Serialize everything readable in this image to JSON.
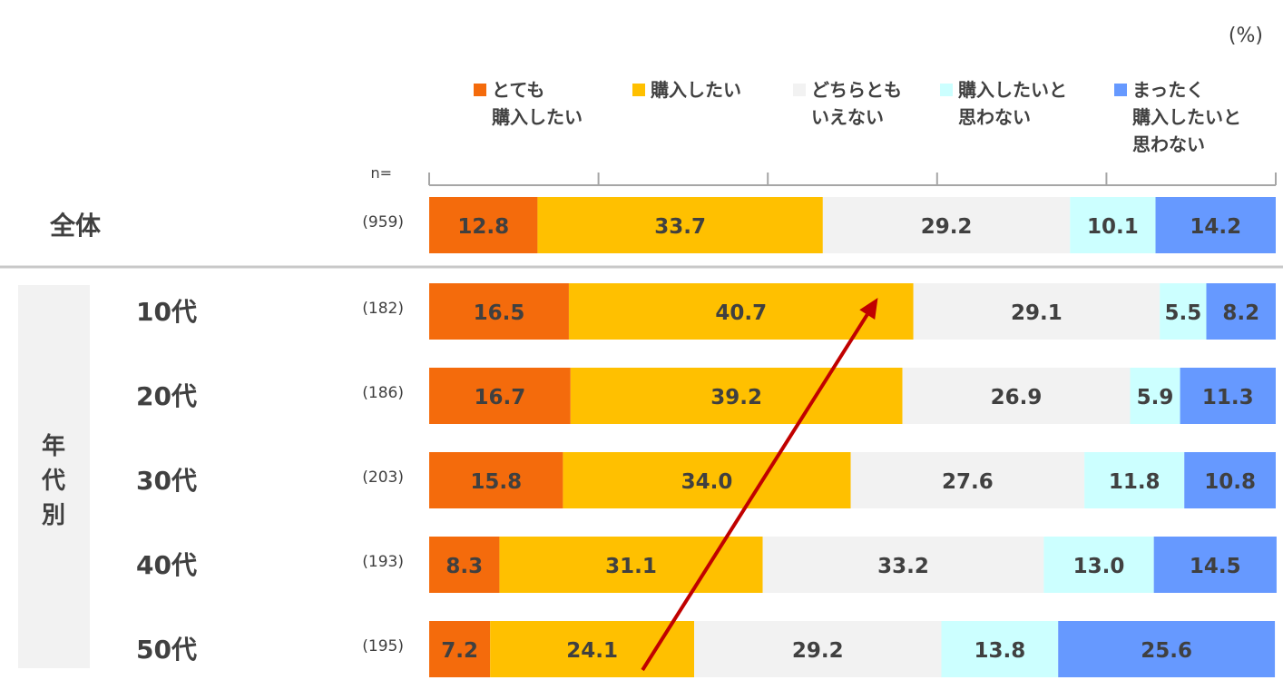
{
  "chart_data": {
    "type": "bar",
    "orientation": "horizontal",
    "stacked": true,
    "unit": "(%)",
    "n_label": "n=",
    "legend_position": "top",
    "grid": false,
    "xlim": [
      0,
      100
    ],
    "series": [
      {
        "name": "とても\n購入したい",
        "color": "#F46B0C",
        "values": [
          12.8,
          16.5,
          16.7,
          15.8,
          8.3,
          7.2
        ]
      },
      {
        "name": "購入したい",
        "color": "#FFC000",
        "values": [
          33.7,
          40.7,
          39.2,
          34.0,
          31.1,
          24.1
        ]
      },
      {
        "name": "どちらとも\nいえない",
        "color": "#F2F2F2",
        "values": [
          29.2,
          29.1,
          26.9,
          27.6,
          33.2,
          29.2
        ]
      },
      {
        "name": "購入したいと\n思わない",
        "color": "#CCFFFF",
        "values": [
          10.1,
          5.5,
          5.9,
          11.8,
          13.0,
          13.8
        ]
      },
      {
        "name": "まったく\n購入したいと\n思わない",
        "color": "#6699FF",
        "values": [
          14.2,
          8.2,
          11.3,
          10.8,
          14.5,
          25.6
        ]
      }
    ],
    "categories": [
      "全体",
      "10代",
      "20代",
      "30代",
      "40代",
      "50代"
    ],
    "n_values": [
      "(959)",
      "(182)",
      "(186)",
      "(203)",
      "(193)",
      "(195)"
    ],
    "group_label": "年代別",
    "group_members": [
      "10代",
      "20代",
      "30代",
      "40代",
      "50代"
    ],
    "annotation": {
      "type": "arrow",
      "color": "#C00000",
      "from": {
        "category": "50代",
        "value": 25.2
      },
      "to": {
        "category": "10代",
        "value": 53.0
      }
    }
  }
}
